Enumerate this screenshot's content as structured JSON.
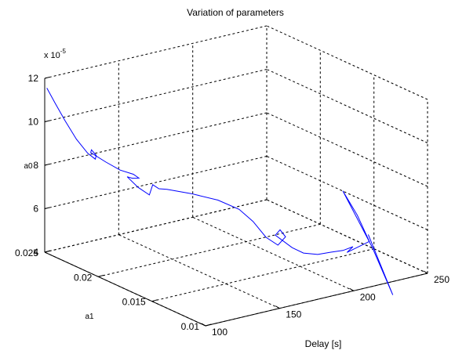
{
  "chart_data": {
    "type": "line",
    "title": "Variation of parameters",
    "xlabel": "Delay [s]",
    "ylabel": "a1",
    "zlabel": "a0",
    "z_exponent": {
      "base": "x 10",
      "exp": "-5"
    },
    "xlim": [
      100,
      250
    ],
    "ylim": [
      0.01,
      0.025
    ],
    "zlim": [
      4,
      12
    ],
    "xticks": [
      "100",
      "150",
      "200",
      "250"
    ],
    "yticks": [
      "0.01",
      "0.015",
      "0.02",
      "0.025"
    ],
    "zticks": [
      "4",
      "6",
      "8",
      "10",
      "12"
    ],
    "grid": true,
    "series": [
      {
        "color": "#0000ff",
        "points": [
          [
            100,
            0.0248,
            11.6
          ],
          [
            104,
            0.0246,
            10.9
          ],
          [
            108,
            0.0242,
            10.1
          ],
          [
            112,
            0.0237,
            9.3
          ],
          [
            116,
            0.0232,
            8.7
          ],
          [
            119,
            0.0229,
            8.45
          ],
          [
            121,
            0.0231,
            8.55
          ],
          [
            120,
            0.0234,
            8.75
          ],
          [
            118,
            0.0232,
            8.7
          ],
          [
            124,
            0.0226,
            8.3
          ],
          [
            130,
            0.0221,
            7.95
          ],
          [
            136,
            0.0217,
            7.75
          ],
          [
            139,
            0.0216,
            7.55
          ],
          [
            138,
            0.0221,
            7.45
          ],
          [
            134,
            0.022,
            7.6
          ],
          [
            137,
            0.0214,
            7.2
          ],
          [
            141,
            0.0209,
            6.9
          ],
          [
            144,
            0.021,
            7.3
          ],
          [
            146,
            0.0207,
            7.15
          ],
          [
            150,
            0.0205,
            7.1
          ],
          [
            162,
            0.0199,
            6.85
          ],
          [
            175,
            0.0192,
            6.5
          ],
          [
            185,
            0.0186,
            6.05
          ],
          [
            190,
            0.018,
            5.55
          ],
          [
            193,
            0.0172,
            4.95
          ],
          [
            196,
            0.0165,
            4.7
          ],
          [
            199,
            0.0162,
            5.1
          ],
          [
            196,
            0.0163,
            5.45
          ],
          [
            195,
            0.0166,
            5.15
          ],
          [
            202,
            0.016,
            4.6
          ],
          [
            206,
            0.0155,
            4.4
          ],
          [
            212,
            0.015,
            4.35
          ],
          [
            218,
            0.0146,
            4.45
          ],
          [
            224,
            0.0143,
            4.5
          ],
          [
            230,
            0.0142,
            4.6
          ],
          [
            226,
            0.0142,
            4.4
          ],
          [
            236,
            0.0135,
            4.9
          ],
          [
            233,
            0.0142,
            6.0
          ],
          [
            229,
            0.015,
            7.0
          ],
          [
            238,
            0.0135,
            4.6
          ],
          [
            241,
            0.012,
            2.7
          ],
          [
            236,
            0.0136,
            5.2
          ]
        ]
      }
    ]
  }
}
